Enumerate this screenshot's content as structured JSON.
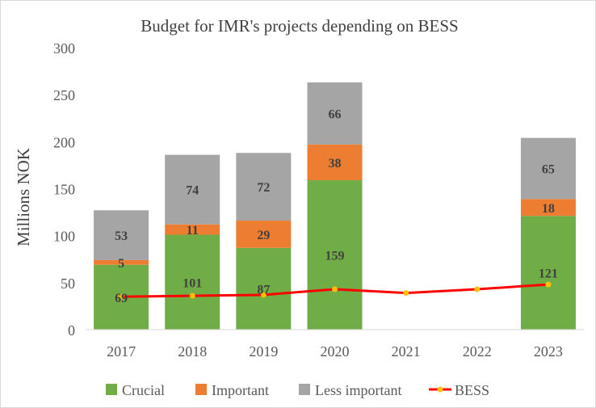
{
  "chart_data": {
    "type": "bar",
    "title": "Budget for IMR's projects depending on BESS",
    "xlabel": "",
    "ylabel": "Millions NOK",
    "ylim": [
      0,
      300
    ],
    "yticks": [
      "0",
      "50",
      "100",
      "150",
      "200",
      "250",
      "300"
    ],
    "categories": [
      "2017",
      "2018",
      "2019",
      "2020",
      "2021",
      "2022",
      "2023"
    ],
    "series": [
      {
        "name": "Crucial",
        "color": "#70ad47",
        "values": [
          69,
          101,
          87,
          159,
          null,
          null,
          121
        ],
        "labels": [
          "69",
          "101",
          "87",
          "159",
          "",
          "",
          "121"
        ]
      },
      {
        "name": "Important",
        "color": "#ed7d31",
        "values": [
          5,
          11,
          29,
          38,
          null,
          null,
          18
        ],
        "labels": [
          "5",
          "11",
          "29",
          "38",
          "",
          "",
          "18"
        ]
      },
      {
        "name": "Less important",
        "color": "#a5a5a5",
        "values": [
          53,
          74,
          72,
          66,
          null,
          null,
          65
        ],
        "labels": [
          "53",
          "74",
          "72",
          "66",
          "",
          "",
          "65"
        ]
      }
    ],
    "line_series": {
      "name": "BESS",
      "type": "line",
      "line_color": "#ff0000",
      "marker_color": "#ffc000",
      "values": [
        35,
        36,
        37,
        43,
        39,
        43,
        48
      ]
    },
    "legend_position": "bottom",
    "grid": false
  }
}
